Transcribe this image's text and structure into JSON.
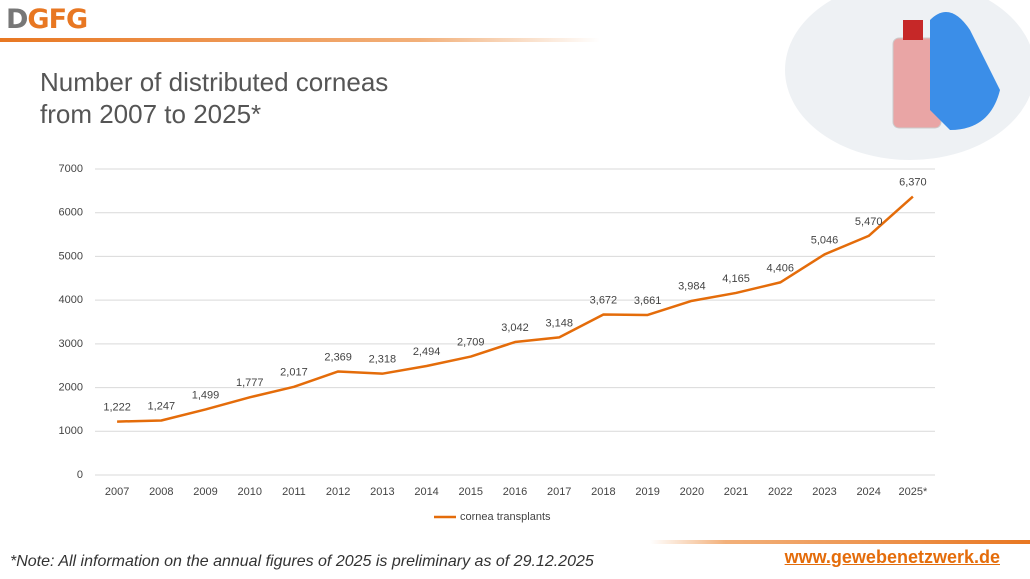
{
  "logo": "DGFG",
  "footnote": "*Note: All information on the annual figures of 2025 is preliminary as of 29.12.2025",
  "website": "www.gewebenetzwerk.de",
  "chart_data": {
    "type": "line",
    "title": "Number of distributed corneas from 2007 to 2025*",
    "categories": [
      "2007",
      "2008",
      "2009",
      "2010",
      "2011",
      "2012",
      "2013",
      "2014",
      "2015",
      "2016",
      "2017",
      "2018",
      "2019",
      "2020",
      "2021",
      "2022",
      "2023",
      "2024",
      "2025*"
    ],
    "series": [
      {
        "name": "cornea transplants",
        "color": "#e46c0a",
        "values": [
          1222,
          1247,
          1499,
          1777,
          2017,
          2369,
          2318,
          2494,
          2709,
          3042,
          3148,
          3672,
          3661,
          3984,
          4165,
          4406,
          5046,
          5470,
          6370
        ],
        "value_labels": [
          "1,222",
          "1,247",
          "1,499",
          "1,777",
          "2,017",
          "2,369",
          "2,318",
          "2,494",
          "2,709",
          "3,042",
          "3,148",
          "3,672",
          "3,661",
          "3,984",
          "4,165",
          "4,406",
          "5,046",
          "5,470",
          "6,370"
        ]
      }
    ],
    "ylim": [
      0,
      7000
    ],
    "yticks": [
      0,
      1000,
      2000,
      3000,
      4000,
      5000,
      6000,
      7000
    ],
    "grid": true,
    "legend": "bottom"
  }
}
